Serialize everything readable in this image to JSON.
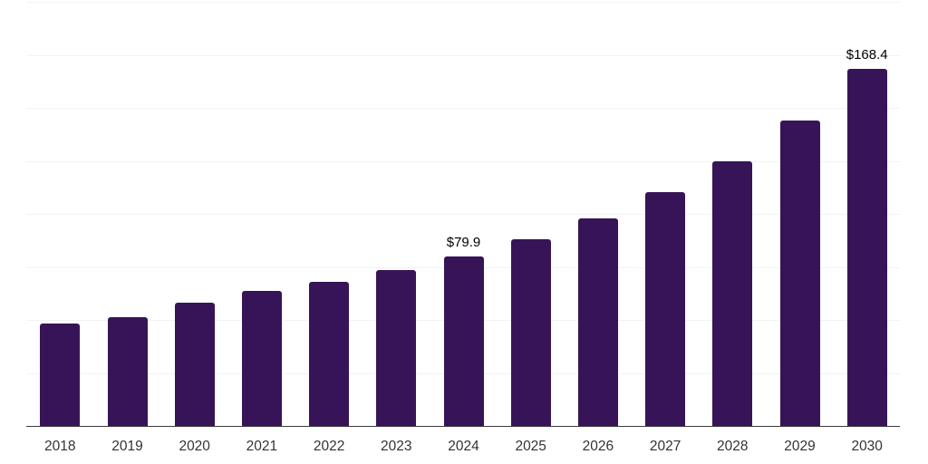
{
  "chart_data": {
    "type": "bar",
    "title": "",
    "xlabel": "",
    "ylabel": "",
    "categories": [
      "2018",
      "2019",
      "2020",
      "2021",
      "2022",
      "2023",
      "2024",
      "2025",
      "2026",
      "2027",
      "2028",
      "2029",
      "2030"
    ],
    "values": [
      48.4,
      51.2,
      58.0,
      63.6,
      68.1,
      73.7,
      79.9,
      88.0,
      97.8,
      110.1,
      125.0,
      144.0,
      168.4
    ],
    "point_labels": {
      "2024": "$79.9",
      "2030": "$168.4"
    },
    "ylim": [
      0,
      200
    ],
    "gridline_step": 25,
    "grid": "horizontal",
    "legend_position": "none",
    "y_tick_labels_visible": false,
    "colors": {
      "bar": "#371457",
      "gridline": "#f2f2f2",
      "axis_line": "#3c3c3c",
      "value_label": "#000000",
      "tick_label": "#333333",
      "background": "#ffffff"
    }
  }
}
